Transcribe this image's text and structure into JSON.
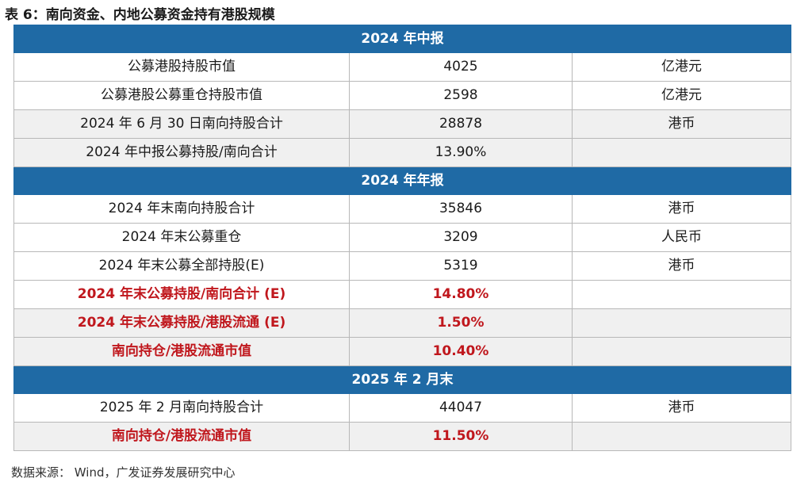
{
  "title": "表 6：南向资金、内地公募资金持有港股规模",
  "rows": [
    {
      "type": "hdr",
      "label": "2024 年中报"
    },
    {
      "type": "white",
      "cells": [
        "公募港股持股市值",
        "4025",
        "亿港元"
      ]
    },
    {
      "type": "white",
      "cells": [
        "公募港股公募重仓持股市值",
        "2598",
        "亿港元"
      ]
    },
    {
      "type": "gray",
      "cells": [
        "2024 年 6 月 30 日南向持股合计",
        "28878",
        "港币"
      ]
    },
    {
      "type": "gray",
      "cells": [
        "2024 年中报公募持股/南向合计",
        "13.90%",
        ""
      ]
    },
    {
      "type": "hdr",
      "label": "2024 年年报"
    },
    {
      "type": "white",
      "cells": [
        "2024 年末南向持股合计",
        "35846",
        "港币"
      ]
    },
    {
      "type": "white",
      "cells": [
        "2024 年末公募重仓",
        "3209",
        "人民币"
      ]
    },
    {
      "type": "white",
      "cells": [
        "2024 年末公募全部持股(E)",
        "5319",
        "港币"
      ]
    },
    {
      "type": "white red",
      "cells": [
        "2024 年末公募持股/南向合计 (E)",
        "14.80%",
        ""
      ]
    },
    {
      "type": "gray red",
      "cells": [
        "2024 年末公募持股/港股流通 (E)",
        "1.50%",
        ""
      ]
    },
    {
      "type": "gray red",
      "cells": [
        "南向持仓/港股流通市值",
        "10.40%",
        ""
      ]
    },
    {
      "type": "hdr",
      "label": "2025 年 2 月末"
    },
    {
      "type": "white",
      "cells": [
        "2025 年 2 月南向持股合计",
        "44047",
        "港币"
      ]
    },
    {
      "type": "gray red",
      "cells": [
        "南向持仓/港股流通市值",
        "11.50%",
        ""
      ]
    }
  ],
  "source": "数据来源：  Wind，广发证券发展研究中心"
}
